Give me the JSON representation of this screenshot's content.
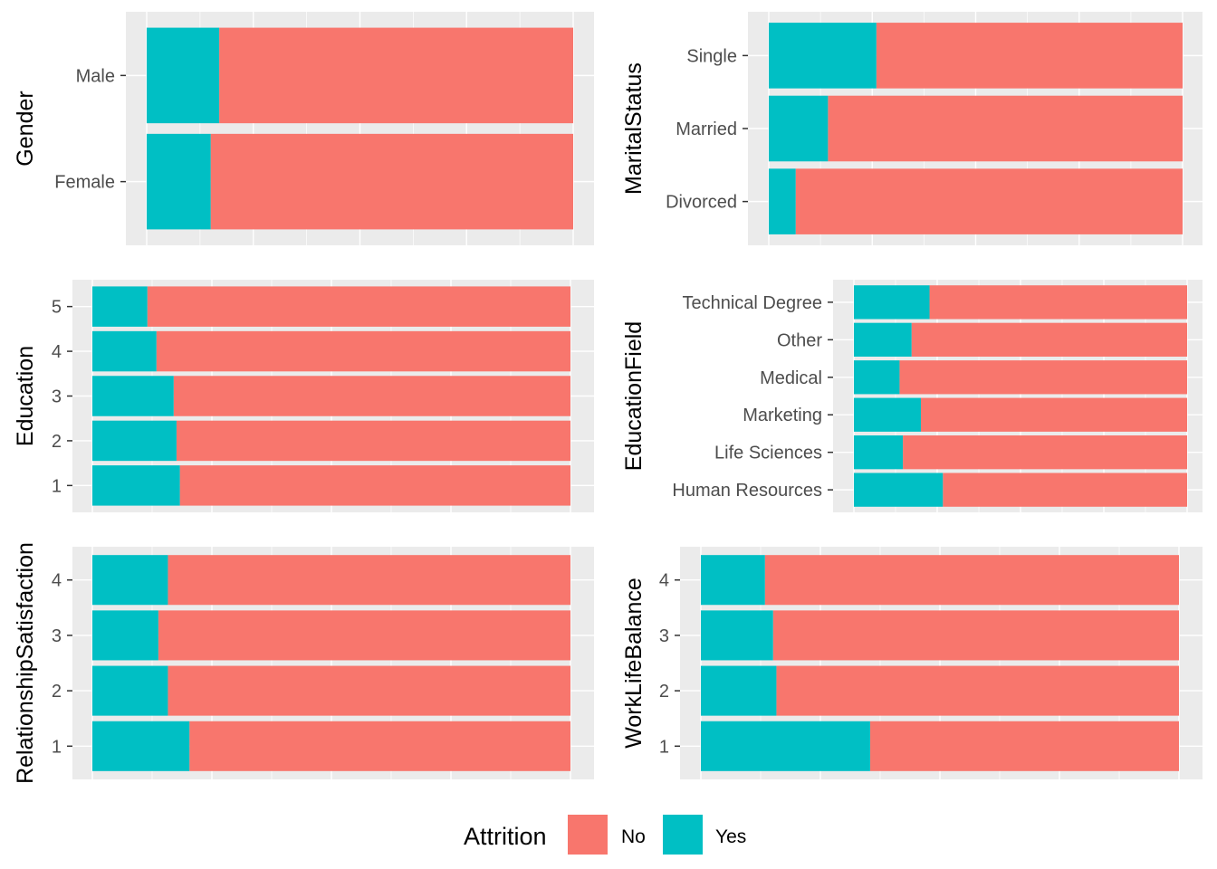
{
  "legend": {
    "title": "Attrition",
    "placement": "bottom",
    "entries": [
      {
        "key": "no",
        "label": "No",
        "color": "#F8766D"
      },
      {
        "key": "yes",
        "label": "Yes",
        "color": "#00BFC4"
      }
    ]
  },
  "chart_data": [
    {
      "type": "bar",
      "stacked": "fill",
      "orientation": "horizontal",
      "ylabel": "Gender",
      "categories": [
        "Female",
        "Male"
      ],
      "series": [
        {
          "name": "No",
          "values": [
            0.85,
            0.83
          ]
        },
        {
          "name": "Yes",
          "values": [
            0.15,
            0.17
          ]
        }
      ],
      "xlim": [
        0,
        1
      ],
      "grid": true
    },
    {
      "type": "bar",
      "stacked": "fill",
      "orientation": "horizontal",
      "ylabel": "MaritalStatus",
      "categories": [
        "Divorced",
        "Married",
        "Single"
      ],
      "series": [
        {
          "name": "No",
          "values": [
            0.935,
            0.857,
            0.74
          ]
        },
        {
          "name": "Yes",
          "values": [
            0.065,
            0.143,
            0.26
          ]
        }
      ],
      "xlim": [
        0,
        1
      ],
      "grid": true
    },
    {
      "type": "bar",
      "stacked": "fill",
      "orientation": "horizontal",
      "ylabel": "Education",
      "categories": [
        "1",
        "2",
        "3",
        "4",
        "5"
      ],
      "series": [
        {
          "name": "No",
          "values": [
            0.817,
            0.824,
            0.83,
            0.866,
            0.885
          ]
        },
        {
          "name": "Yes",
          "values": [
            0.183,
            0.176,
            0.17,
            0.134,
            0.115
          ]
        }
      ],
      "xlim": [
        0,
        1
      ],
      "grid": true
    },
    {
      "type": "bar",
      "stacked": "fill",
      "orientation": "horizontal",
      "ylabel": "EducationField",
      "categories": [
        "Human Resources",
        "Life Sciences",
        "Marketing",
        "Medical",
        "Other",
        "Technical Degree"
      ],
      "series": [
        {
          "name": "No",
          "values": [
            0.733,
            0.853,
            0.799,
            0.863,
            0.827,
            0.773
          ]
        },
        {
          "name": "Yes",
          "values": [
            0.267,
            0.147,
            0.201,
            0.137,
            0.173,
            0.227
          ]
        }
      ],
      "xlim": [
        0,
        1
      ],
      "grid": true
    },
    {
      "type": "bar",
      "stacked": "fill",
      "orientation": "horizontal",
      "ylabel": "RelationshipSatisfaction",
      "categories": [
        "1",
        "2",
        "3",
        "4"
      ],
      "series": [
        {
          "name": "No",
          "values": [
            0.797,
            0.842,
            0.862,
            0.842
          ]
        },
        {
          "name": "Yes",
          "values": [
            0.203,
            0.158,
            0.138,
            0.158
          ]
        }
      ],
      "xlim": [
        0,
        1
      ],
      "grid": true
    },
    {
      "type": "bar",
      "stacked": "fill",
      "orientation": "horizontal",
      "ylabel": "WorkLifeBalance",
      "categories": [
        "1",
        "2",
        "3",
        "4"
      ],
      "series": [
        {
          "name": "No",
          "values": [
            0.646,
            0.842,
            0.849,
            0.866
          ]
        },
        {
          "name": "Yes",
          "values": [
            0.354,
            0.158,
            0.151,
            0.134
          ]
        }
      ],
      "xlim": [
        0,
        1
      ],
      "grid": true
    }
  ]
}
